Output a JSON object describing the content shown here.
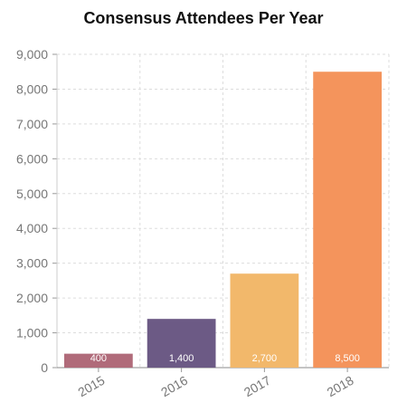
{
  "chart_data": {
    "type": "bar",
    "title": "Consensus Attendees Per Year",
    "categories": [
      "2015",
      "2016",
      "2017",
      "2018"
    ],
    "values": [
      400,
      1400,
      2700,
      8500
    ],
    "data_labels": [
      "400",
      "1,400",
      "2,700",
      "8,500"
    ],
    "y_ticks": [
      0,
      1000,
      2000,
      3000,
      4000,
      5000,
      6000,
      7000,
      8000,
      9000
    ],
    "y_tick_labels": [
      "0",
      "1,000",
      "2,000",
      "3,000",
      "4,000",
      "5,000",
      "6,000",
      "7,000",
      "8,000",
      "9,000"
    ],
    "ylim": [
      0,
      9000
    ],
    "xlabel": "",
    "ylabel": "",
    "grid": true,
    "legend": "none",
    "colors": [
      "#b06b7a",
      "#6c5a85",
      "#f2b86b",
      "#f4945c"
    ]
  }
}
